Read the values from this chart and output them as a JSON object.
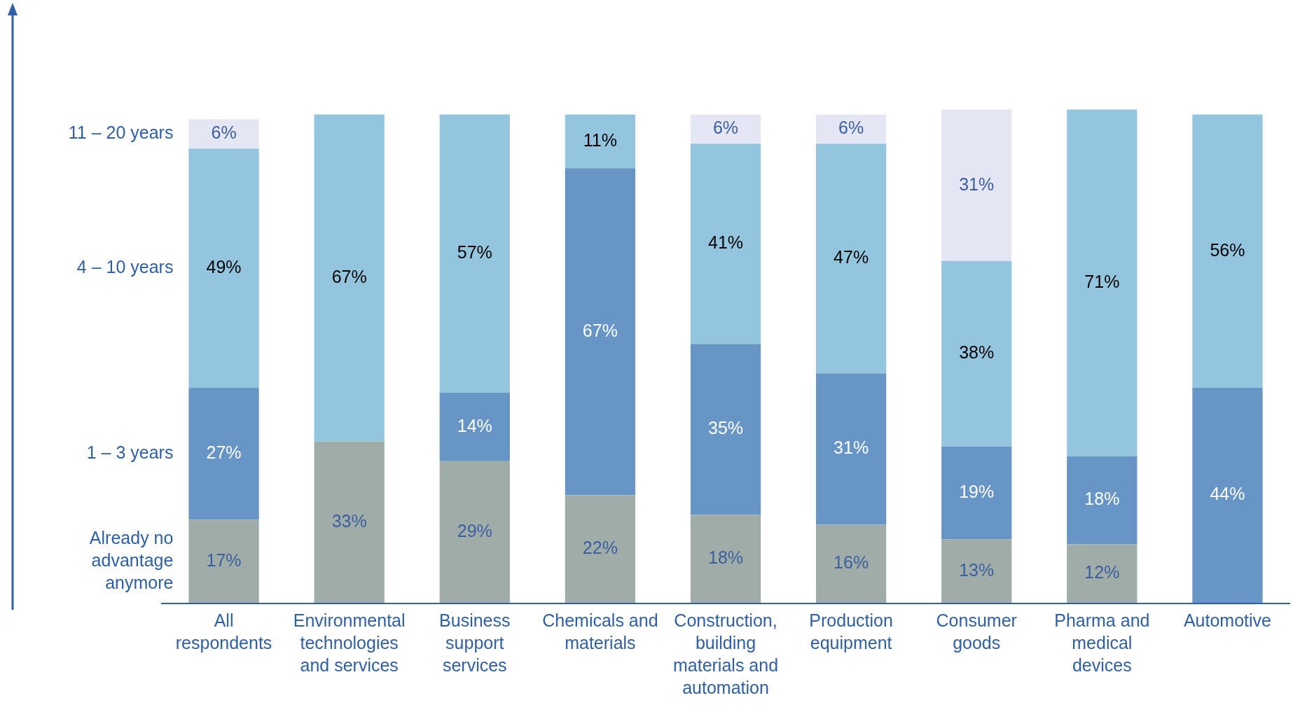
{
  "chart_data": {
    "type": "bar",
    "stacked": true,
    "tick_labels": "x",
    "categories": [
      "All respondents",
      "Environmental technologies and services",
      "Business support services",
      "Chemicals and materials",
      "Construction, building materials and automation",
      "Production equipment",
      "Consumer goods",
      "Pharma and medical devices",
      "Automotive"
    ],
    "series": [
      {
        "name": "Already no advantage anymore",
        "color": "#a0aca8",
        "values": [
          17,
          33,
          29,
          22,
          18,
          16,
          13,
          12,
          null
        ],
        "value_labels": [
          "17%",
          "33%",
          "29%",
          "22%",
          "18%",
          "16%",
          "13%",
          "12%",
          null
        ]
      },
      {
        "name": "1 – 3 years",
        "color": "#6795c5",
        "values": [
          27,
          null,
          14,
          67,
          35,
          31,
          19,
          18,
          44
        ],
        "value_labels": [
          "27%",
          null,
          "14%",
          "67%",
          "35%",
          "31%",
          "19%",
          "18%",
          "44%"
        ]
      },
      {
        "name": "4 – 10 years",
        "color": "#94c5df",
        "values": [
          49,
          67,
          57,
          11,
          41,
          47,
          38,
          71,
          56
        ],
        "value_labels": [
          "49%",
          "67%",
          "57%",
          "11%",
          "41%",
          "47%",
          "38%",
          "71%",
          "56%"
        ]
      },
      {
        "name": "11 – 20 years",
        "color": "#e4e6f3",
        "values": [
          6,
          null,
          null,
          null,
          6,
          6,
          31,
          null,
          null
        ],
        "value_labels": [
          "6%",
          null,
          null,
          null,
          "6%",
          "6%",
          "31%",
          null,
          null
        ]
      }
    ]
  }
}
